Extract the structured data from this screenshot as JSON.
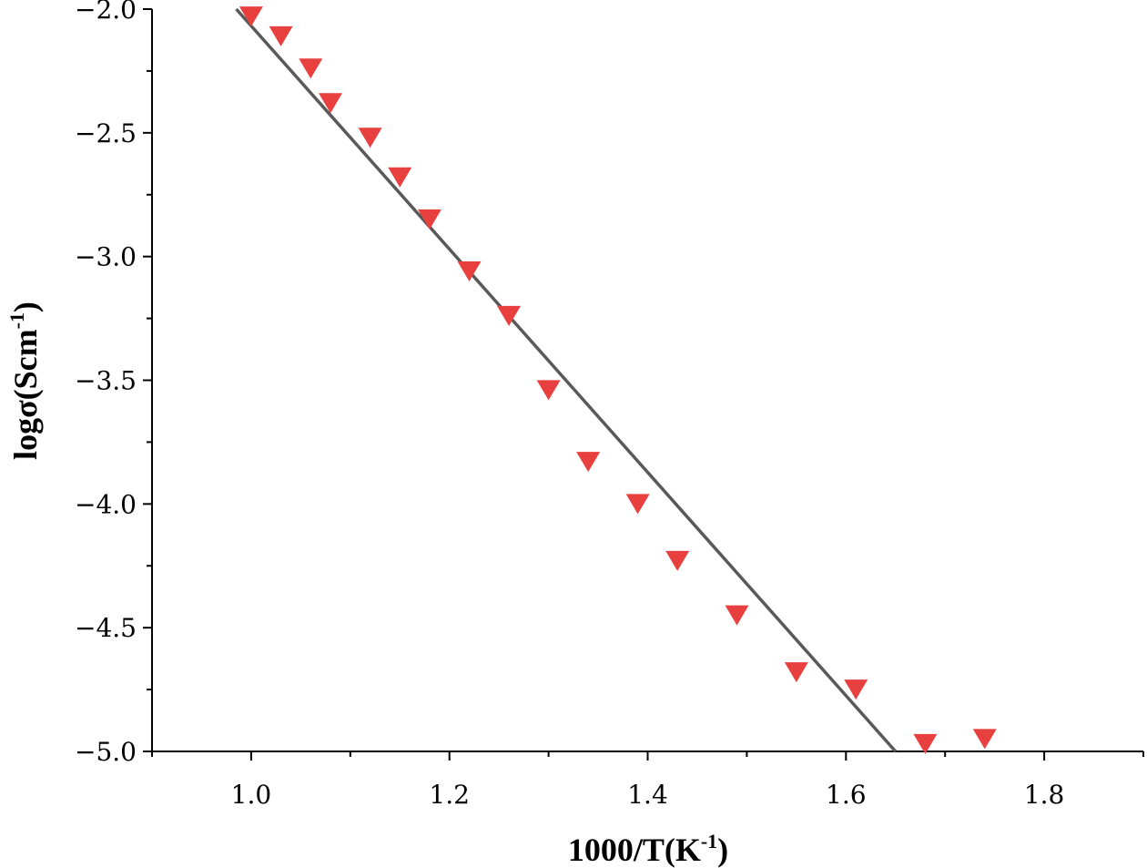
{
  "chart_data": {
    "type": "scatter",
    "xlabel": "1000/T(K",
    "xlabel_sup": "-1",
    "xlabel_close": ")",
    "ylabel": "logσ(Scm",
    "ylabel_sup": "-1",
    "ylabel_close": ")",
    "xlim": [
      0.9,
      1.9
    ],
    "ylim": [
      -5.0,
      -2.0
    ],
    "xticks": [
      1.0,
      1.2,
      1.4,
      1.6,
      1.8
    ],
    "xtick_labels": [
      "1.0",
      "1.2",
      "1.4",
      "1.6",
      "1.8"
    ],
    "yticks": [
      -2.0,
      -2.5,
      -3.0,
      -3.5,
      -4.0,
      -4.5,
      -5.0
    ],
    "ytick_labels": [
      "−2.0",
      "−2.5",
      "−3.0",
      "−3.5",
      "−4.0",
      "−4.5",
      "−5.0"
    ],
    "grid": false,
    "legend": "none",
    "series": [
      {
        "kind": "scatter",
        "marker": "triangle-down",
        "color": "#e8403f",
        "x": [
          1.0,
          1.03,
          1.06,
          1.08,
          1.12,
          1.15,
          1.18,
          1.22,
          1.26,
          1.3,
          1.34,
          1.39,
          1.43,
          1.49,
          1.55,
          1.61,
          1.68,
          1.74
        ],
        "y": [
          -2.03,
          -2.11,
          -2.24,
          -2.38,
          -2.52,
          -2.68,
          -2.85,
          -3.06,
          -3.24,
          -3.54,
          -3.83,
          -4.0,
          -4.23,
          -4.45,
          -4.68,
          -4.75,
          -4.97,
          -4.95
        ]
      },
      {
        "kind": "line",
        "color": "#595959",
        "x": [
          0.985,
          1.65
        ],
        "y": [
          -2.0,
          -5.0
        ]
      }
    ]
  }
}
